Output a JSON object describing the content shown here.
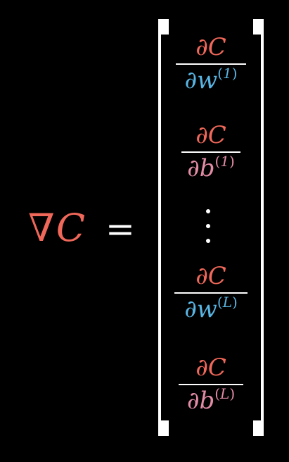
{
  "colors": {
    "background": "#000000",
    "cost": "#f0685a",
    "weight": "#58b4e2",
    "bias": "#e38ca6",
    "text": "#ffffff"
  },
  "lhs": {
    "nabla": "∇",
    "cost": "C",
    "equals": "="
  },
  "vector": {
    "entries": [
      {
        "partial": "∂",
        "numerator_var": "C",
        "denominator_var": "w",
        "superscript_open": "(",
        "superscript_index": "1",
        "superscript_close": ")"
      },
      {
        "partial": "∂",
        "numerator_var": "C",
        "denominator_var": "b",
        "superscript_open": "(",
        "superscript_index": "1",
        "superscript_close": ")"
      },
      {
        "partial": "∂",
        "numerator_var": "C",
        "denominator_var": "w",
        "superscript_open": "(",
        "superscript_index": "L",
        "superscript_close": ")"
      },
      {
        "partial": "∂",
        "numerator_var": "C",
        "denominator_var": "b",
        "superscript_open": "(",
        "superscript_index": "L",
        "superscript_close": ")"
      }
    ]
  }
}
